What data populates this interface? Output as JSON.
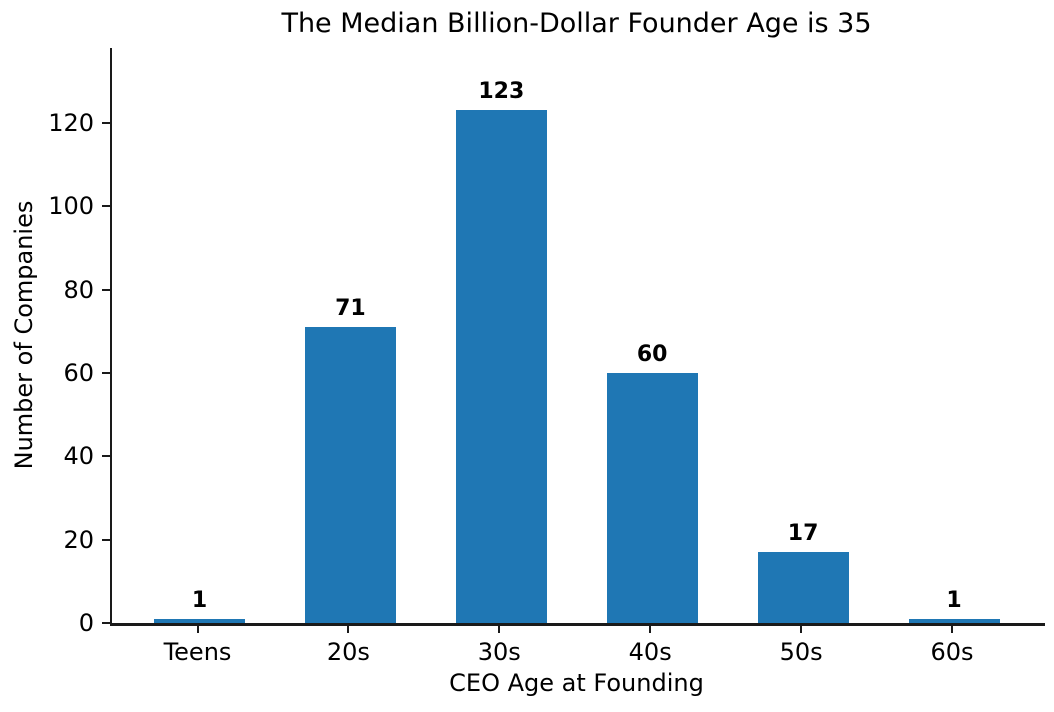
{
  "chart_data": {
    "type": "bar",
    "title": "The Median Billion-Dollar Founder Age is 35",
    "xlabel": "CEO Age at Founding",
    "ylabel": "Number of Companies",
    "categories": [
      "Teens",
      "20s",
      "30s",
      "40s",
      "50s",
      "60s"
    ],
    "values": [
      1,
      71,
      123,
      60,
      17,
      1
    ],
    "bar_value_labels": [
      "1",
      "71",
      "123",
      "60",
      "17",
      "1"
    ],
    "yticks": [
      0,
      20,
      40,
      60,
      80,
      100,
      120
    ],
    "ylim": [
      0,
      138
    ],
    "grid": false,
    "legend": null,
    "bar_color": "#1f77b4",
    "axis_color": "#1a1a1a",
    "text_color": "#000000"
  }
}
